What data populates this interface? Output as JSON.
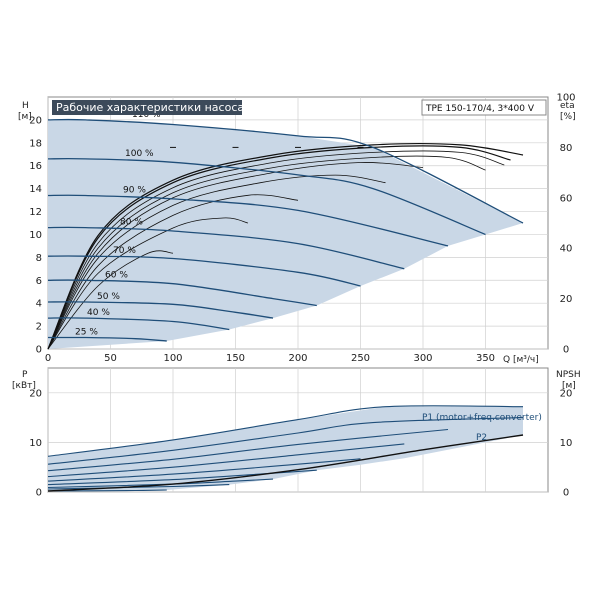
{
  "header": {
    "title": "Рабочие характеристики насоса",
    "model": "TPE 150-170/4, 3*400 V"
  },
  "colors": {
    "region": "#c9d7e6",
    "curve": "#1f4e79",
    "eff": "#111111",
    "grid": "#d0d0d0",
    "title_bg": "#3c4a5a"
  },
  "chart_data": [
    {
      "type": "line",
      "name": "head",
      "ylabel": "H",
      "yunit": "[м]",
      "y2label": "eta",
      "y2unit": "[%]",
      "xlabel": "Q [м³/ч]",
      "xlim": [
        0,
        400
      ],
      "ylim": [
        0,
        22
      ],
      "y2lim": [
        0,
        100
      ],
      "xticks": [
        0,
        50,
        100,
        150,
        200,
        250,
        300,
        350
      ],
      "yticks": [
        0,
        2,
        4,
        6,
        8,
        10,
        12,
        14,
        16,
        18,
        20
      ],
      "y2ticks": [
        0,
        20,
        40,
        60,
        80,
        100
      ],
      "series": [
        {
          "name": "110 %",
          "x": [
            0,
            30,
            100,
            200,
            260,
            380
          ],
          "y": [
            20.0,
            20.0,
            19.6,
            18.6,
            17.6,
            11.0
          ]
        },
        {
          "name": "100 %",
          "x": [
            0,
            30,
            100,
            200,
            260,
            350
          ],
          "y": [
            16.6,
            16.6,
            16.3,
            15.2,
            14.0,
            10.0
          ]
        },
        {
          "name": "90 %",
          "x": [
            0,
            30,
            100,
            200,
            320
          ],
          "y": [
            13.4,
            13.4,
            13.1,
            12.1,
            9.0
          ]
        },
        {
          "name": "80 %",
          "x": [
            0,
            30,
            100,
            200,
            285
          ],
          "y": [
            10.6,
            10.6,
            10.3,
            9.2,
            7.0
          ]
        },
        {
          "name": "70 %",
          "x": [
            0,
            30,
            100,
            200,
            250
          ],
          "y": [
            8.1,
            8.1,
            7.9,
            6.7,
            5.5
          ]
        },
        {
          "name": "60 %",
          "x": [
            0,
            30,
            100,
            180,
            215
          ],
          "y": [
            6.0,
            6.0,
            5.7,
            4.4,
            3.8
          ]
        },
        {
          "name": "50 %",
          "x": [
            0,
            30,
            100,
            150,
            180
          ],
          "y": [
            4.1,
            4.1,
            3.9,
            3.2,
            2.7
          ]
        },
        {
          "name": "40 %",
          "x": [
            0,
            30,
            100,
            145
          ],
          "y": [
            2.7,
            2.7,
            2.4,
            1.7
          ]
        },
        {
          "name": "25 %",
          "x": [
            0,
            30,
            70,
            95
          ],
          "y": [
            1.0,
            1.0,
            0.9,
            0.7
          ]
        }
      ],
      "eta_series": [
        {
          "x": [
            0,
            40,
            100,
            180,
            260,
            330,
            380
          ],
          "y": [
            0,
            45,
            67,
            77,
            81,
            81,
            77
          ]
        },
        {
          "x": [
            0,
            40,
            100,
            180,
            260,
            330,
            370
          ],
          "y": [
            0,
            44,
            66,
            76,
            80,
            80,
            75
          ]
        },
        {
          "x": [
            0,
            40,
            100,
            180,
            260,
            330,
            365
          ],
          "y": [
            0,
            42,
            64,
            74,
            78,
            78,
            73
          ]
        },
        {
          "x": [
            0,
            40,
            100,
            180,
            260,
            320,
            350
          ],
          "y": [
            0,
            40,
            62,
            72,
            76,
            76,
            71
          ]
        },
        {
          "x": [
            0,
            40,
            100,
            180,
            250,
            300
          ],
          "y": [
            0,
            38,
            60,
            70,
            74,
            72
          ]
        },
        {
          "x": [
            0,
            40,
            100,
            170,
            230,
            270
          ],
          "y": [
            0,
            36,
            57,
            66,
            69,
            66
          ]
        },
        {
          "x": [
            0,
            40,
            100,
            160,
            200
          ],
          "y": [
            0,
            33,
            53,
            61,
            59
          ]
        },
        {
          "x": [
            0,
            40,
            100,
            140,
            160
          ],
          "y": [
            0,
            30,
            48,
            52,
            50
          ]
        },
        {
          "x": [
            0,
            40,
            80,
            100
          ],
          "y": [
            0,
            25,
            38,
            38
          ]
        }
      ],
      "eta_markers": [
        {
          "x": 100,
          "y": 80
        },
        {
          "x": 150,
          "y": 80
        },
        {
          "x": 200,
          "y": 80
        },
        {
          "x": 250,
          "y": 80
        }
      ],
      "region": {
        "upper_x": [
          0,
          30,
          100,
          200,
          260,
          380
        ],
        "upper_y": [
          20.0,
          20.0,
          19.6,
          18.6,
          17.6,
          11.0
        ],
        "lower_x": [
          95,
          145,
          180,
          215,
          250,
          285,
          320,
          350,
          380
        ],
        "lower_y": [
          0.7,
          1.7,
          2.7,
          3.8,
          5.5,
          7.0,
          9.0,
          10.0,
          11.0
        ]
      }
    },
    {
      "type": "line",
      "name": "power",
      "ylabel": "P",
      "yunit": "[кВт]",
      "y2label": "NPSH",
      "y2unit": "[м]",
      "xlim": [
        0,
        400
      ],
      "ylim": [
        0,
        25
      ],
      "y2lim": [
        0,
        25
      ],
      "yticks": [
        0,
        10,
        20
      ],
      "y2ticks": [
        0,
        10,
        20
      ],
      "p1_label": "P1 (motor+freq.converter)",
      "p2_label": "P2",
      "series": [
        {
          "name": "110 %",
          "x": [
            0,
            100,
            200,
            270,
            380
          ],
          "y": [
            7.2,
            10.5,
            14.6,
            17.2,
            17.2
          ]
        },
        {
          "name": "100 %",
          "x": [
            0,
            100,
            200,
            260,
            380
          ],
          "y": [
            5.6,
            8.4,
            11.9,
            14.0,
            15.0
          ]
        },
        {
          "name": "90 %",
          "x": [
            0,
            100,
            200,
            320
          ],
          "y": [
            4.3,
            6.6,
            9.6,
            12.6
          ]
        },
        {
          "name": "80 %",
          "x": [
            0,
            100,
            200,
            285
          ],
          "y": [
            3.1,
            5.0,
            7.5,
            9.7
          ]
        },
        {
          "name": "70 %",
          "x": [
            0,
            100,
            200,
            250
          ],
          "y": [
            2.2,
            3.6,
            5.6,
            6.7
          ]
        },
        {
          "name": "60 %",
          "x": [
            0,
            100,
            180,
            215
          ],
          "y": [
            1.5,
            2.5,
            3.8,
            4.4
          ]
        },
        {
          "name": "50 %",
          "x": [
            0,
            100,
            150,
            180
          ],
          "y": [
            0.9,
            1.6,
            2.2,
            2.6
          ]
        },
        {
          "name": "40 %",
          "x": [
            0,
            100,
            145
          ],
          "y": [
            0.6,
            1.1,
            1.5
          ]
        },
        {
          "name": "25 %",
          "x": [
            0,
            70,
            95
          ],
          "y": [
            0.2,
            0.3,
            0.4
          ]
        }
      ],
      "npsh": {
        "x": [
          0,
          100,
          200,
          300,
          380
        ],
        "y": [
          0.2,
          1.6,
          4.5,
          8.5,
          11.5
        ]
      }
    }
  ]
}
